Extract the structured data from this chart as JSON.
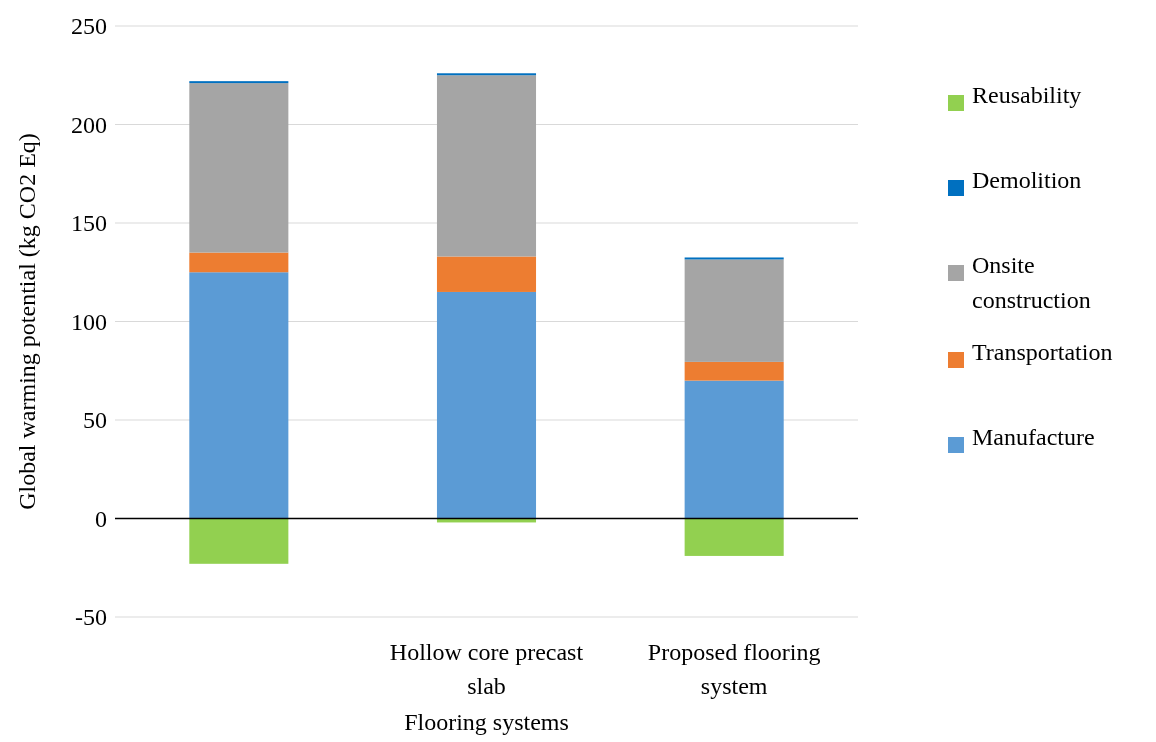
{
  "chart_data": {
    "type": "bar",
    "stacked": true,
    "xlabel": "Flooring systems",
    "ylabel": "Global warming potential (kg CO2 Eq)",
    "categories": [
      null,
      "Hollow core precast slab",
      "Proposed flooring system"
    ],
    "series": [
      {
        "name": "Manufacture",
        "color": "#5b9bd5",
        "values": [
          125,
          115,
          70
        ]
      },
      {
        "name": "Transportation",
        "color": "#ed7d31",
        "values": [
          10,
          18,
          9.5
        ]
      },
      {
        "name": "Onsite construction",
        "color": "#a5a5a5",
        "values": [
          86,
          92,
          52
        ]
      },
      {
        "name": "Demolition",
        "color": "#0070c0",
        "values": [
          1,
          1,
          1
        ]
      },
      {
        "name": "Reusability",
        "color": "#92d050",
        "values": [
          -23,
          -2,
          -19
        ]
      }
    ],
    "ylim": [
      -50,
      250
    ],
    "yticks": [
      -50,
      0,
      50,
      100,
      150,
      200,
      250
    ],
    "grid": "y",
    "legend": "right"
  }
}
